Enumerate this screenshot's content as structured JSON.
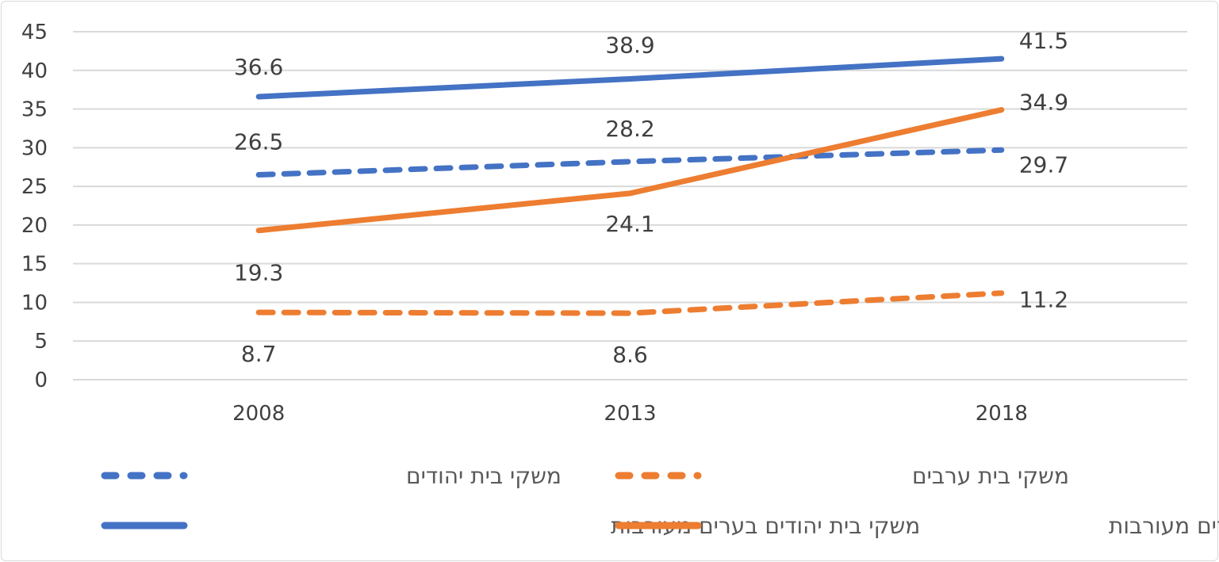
{
  "chart_data": {
    "type": "line",
    "categories": [
      "2008",
      "2013",
      "2018"
    ],
    "ylim": [
      0,
      45
    ],
    "yticks": [
      0,
      5,
      10,
      15,
      20,
      25,
      30,
      35,
      40,
      45
    ],
    "grid": true,
    "legend_position": "bottom",
    "series": [
      {
        "name": "משקי בית יהודים",
        "values": [
          26.5,
          28.2,
          29.7
        ],
        "color": "#4472C4",
        "dash": "dashed"
      },
      {
        "name": "משקי בית ערבים",
        "values": [
          8.7,
          8.6,
          11.2
        ],
        "color": "#ED7D31",
        "dash": "dashed"
      },
      {
        "name": "משקי בית יהודים בערים מעורבות",
        "values": [
          36.6,
          38.9,
          41.5
        ],
        "color": "#4472C4",
        "dash": "solid"
      },
      {
        "name": "משקי בית ערבים בערים מעורבות",
        "values": [
          19.3,
          24.1,
          34.9
        ],
        "color": "#ED7D31",
        "dash": "solid"
      }
    ]
  }
}
